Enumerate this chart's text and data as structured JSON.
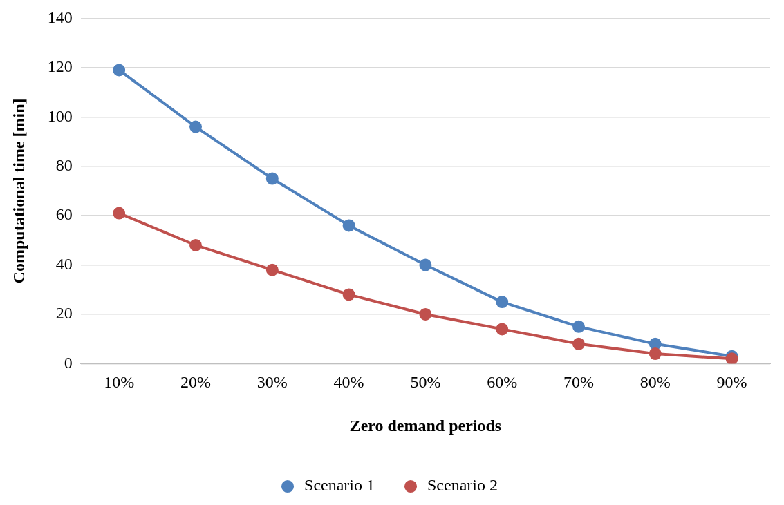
{
  "chart_data": {
    "type": "line",
    "xlabel": "Zero demand periods",
    "ylabel": "Computational time [min]",
    "categories": [
      "10%",
      "20%",
      "30%",
      "40%",
      "50%",
      "60%",
      "70%",
      "80%",
      "90%"
    ],
    "series": [
      {
        "name": "Scenario 1",
        "color": "#4f81bd",
        "values": [
          119,
          96,
          75,
          56,
          40,
          25,
          15,
          8,
          3
        ]
      },
      {
        "name": "Scenario 2",
        "color": "#c0504d",
        "values": [
          61,
          48,
          38,
          28,
          20,
          14,
          8,
          4,
          2
        ]
      }
    ],
    "ylim": [
      0,
      140
    ],
    "yticks": [
      0,
      20,
      40,
      60,
      80,
      100,
      120,
      140
    ],
    "grid": "y",
    "legend": "bottom",
    "marker": "circle",
    "line_style": "solid"
  }
}
